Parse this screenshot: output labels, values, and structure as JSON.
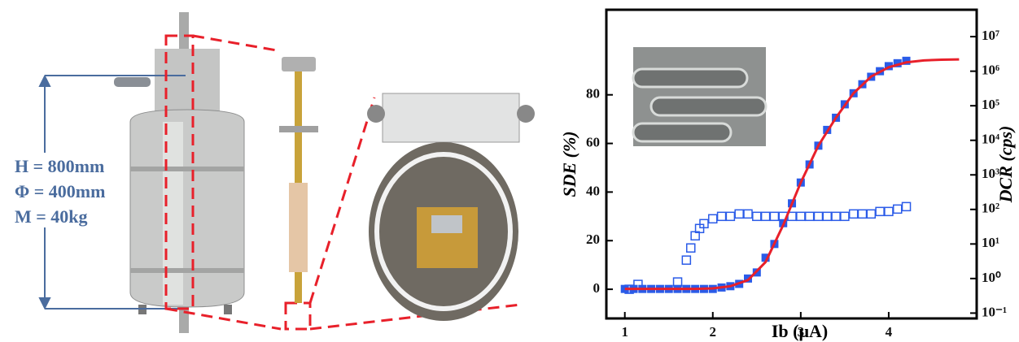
{
  "photo_labels": [
    "H = 800mm",
    "Φ = 400mm",
    "M = 40kg"
  ],
  "chart_data": {
    "type": "scatter",
    "x_label": "Ib (μA)",
    "y_label": "SDE (%)",
    "y2_label": "DCR (cps)",
    "xlim": [
      0.79,
      5.0
    ],
    "xticks": [
      1,
      2,
      3,
      4
    ],
    "ylim": [
      -12,
      115
    ],
    "yticks": [
      0,
      20,
      40,
      60,
      80
    ],
    "y2lim": [
      0.07,
      60000000
    ],
    "y2log": true,
    "y2ticks": [
      {
        "value": 0.1,
        "label": "10⁻¹"
      },
      {
        "value": 1,
        "label": "10⁰"
      },
      {
        "value": 10,
        "label": "10¹"
      },
      {
        "value": 100,
        "label": "10²"
      },
      {
        "value": 1000,
        "label": "10³"
      },
      {
        "value": 10000,
        "label": "10⁴"
      },
      {
        "value": 100000,
        "label": "10⁵"
      },
      {
        "value": 1000000,
        "label": "10⁶"
      },
      {
        "value": 10000000,
        "label": "10⁷"
      }
    ],
    "series": [
      {
        "color": "#2a5be8",
        "marker": "filled-square",
        "axis": "y2",
        "x": [
          1.0,
          1.1,
          1.2,
          1.3,
          1.4,
          1.5,
          1.6,
          1.7,
          1.8,
          1.9,
          2.0,
          2.1,
          2.2,
          2.3,
          2.4,
          2.5,
          2.6,
          2.7,
          2.8,
          2.9,
          3.0,
          3.1,
          3.2,
          3.3,
          3.4,
          3.5,
          3.6,
          3.7,
          3.8,
          3.9,
          4.0,
          4.1,
          4.2
        ],
        "values": [
          0.5,
          0.5,
          0.5,
          0.5,
          0.5,
          0.5,
          0.5,
          0.5,
          0.5,
          0.5,
          0.5,
          0.55,
          0.6,
          0.7,
          1.0,
          1.5,
          4,
          10,
          40,
          150,
          600,
          2000,
          7000,
          20000,
          45000,
          110000,
          230000,
          420000,
          690000,
          1000000,
          1400000,
          1700000,
          2000000
        ]
      },
      {
        "color": "#2a5be8",
        "marker": "open-square",
        "axis": "y",
        "x": [
          1.05,
          1.15,
          1.6,
          1.7,
          1.75,
          1.8,
          1.85,
          1.9,
          2.0,
          2.1,
          2.2,
          2.3,
          2.4,
          2.5,
          2.6,
          2.7,
          2.8,
          2.9,
          3.0,
          3.1,
          3.2,
          3.3,
          3.4,
          3.5,
          3.6,
          3.7,
          3.8,
          3.9,
          4.0,
          4.1,
          4.2
        ],
        "values": [
          0,
          2,
          3,
          12,
          17,
          22,
          25,
          27,
          29,
          30,
          30,
          31,
          31,
          30,
          30,
          30,
          30,
          30,
          30,
          30,
          30,
          30,
          30,
          30,
          31,
          31,
          31,
          32,
          32,
          33,
          34
        ]
      },
      {
        "color": "#e8202a",
        "marker": "line",
        "axis": "y2",
        "x": [
          1.0,
          1.2,
          1.4,
          1.6,
          1.8,
          2.0,
          2.2,
          2.4,
          2.6,
          2.8,
          3.0,
          3.2,
          3.4,
          3.6,
          3.8,
          4.0,
          4.2,
          4.4,
          4.6,
          4.8
        ],
        "values": [
          0.5,
          0.5,
          0.5,
          0.5,
          0.5,
          0.52,
          0.6,
          0.9,
          3,
          35,
          600,
          7000,
          45000,
          230000,
          700000,
          1300000,
          1800000,
          2050000,
          2150000,
          2200000
        ]
      }
    ]
  }
}
